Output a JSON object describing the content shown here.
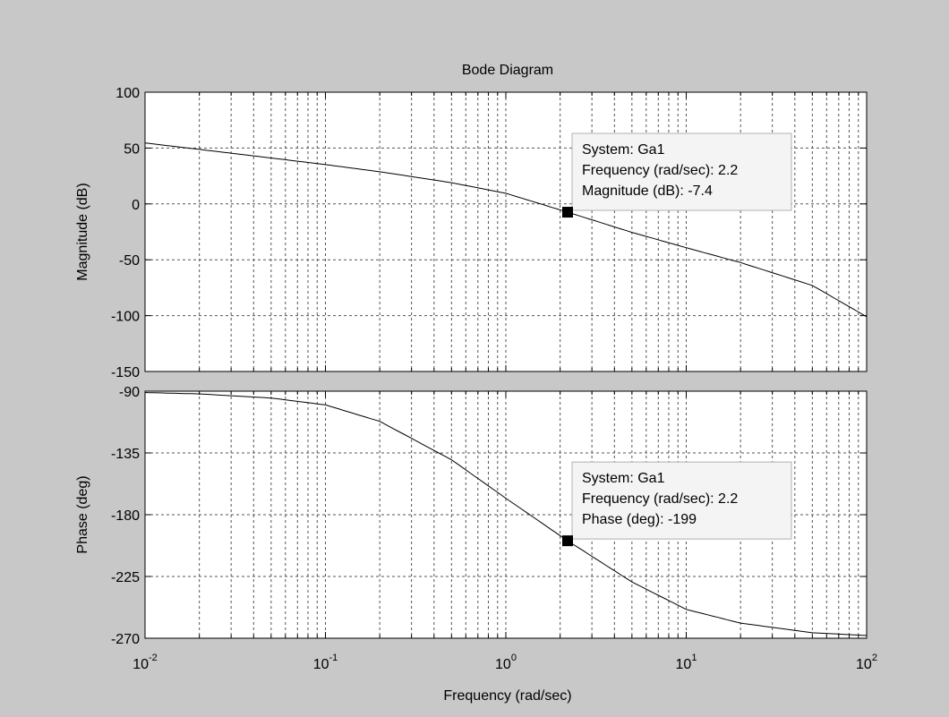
{
  "chart_data": {
    "type": "line",
    "title": "Bode Diagram",
    "xlabel": "Frequency  (rad/sec)",
    "xscale": "log",
    "xlim": [
      0.01,
      100
    ],
    "x_tick_labels": [
      {
        "base": "10",
        "exp": "-2"
      },
      {
        "base": "10",
        "exp": "-1"
      },
      {
        "base": "10",
        "exp": "0"
      },
      {
        "base": "10",
        "exp": "1"
      },
      {
        "base": "10",
        "exp": "2"
      }
    ],
    "grid": true,
    "plots": [
      {
        "id": "magnitude",
        "ylabel": "Magnitude (dB)",
        "ylim": [
          -150,
          100
        ],
        "yticks": [
          100,
          50,
          0,
          -50,
          -100,
          -150
        ],
        "series": [
          {
            "x": [
              0.01,
              0.02,
              0.05,
              0.1,
              0.2,
              0.5,
              1,
              2.2,
              5,
              10,
              20,
              50,
              100
            ],
            "y": [
              54.6,
              48.8,
              41.1,
              35.2,
              28.8,
              19.0,
              9.5,
              -7.4,
              -25.5,
              -39.2,
              -52.5,
              -73.0,
              -101
            ]
          }
        ],
        "datatip": {
          "x": 2.2,
          "y": -7.4,
          "lines": [
            "System: Ga1",
            "Frequency (rad/sec): 2.2",
            "Magnitude (dB): -7.4"
          ]
        }
      },
      {
        "id": "phase",
        "ylabel": "Phase (deg)",
        "ylim": [
          -270,
          -90
        ],
        "yticks": [
          -90,
          -135,
          -180,
          -225,
          -270
        ],
        "series": [
          {
            "x": [
              0.01,
              0.02,
              0.05,
              0.1,
              0.2,
              0.5,
              1,
              2.2,
              5,
              10,
              20,
              50,
              100
            ],
            "y": [
              -91,
              -92,
              -95,
              -100,
              -112,
              -140,
              -168,
              -199,
              -229,
              -249,
              -259,
              -266,
              -268
            ]
          }
        ],
        "datatip": {
          "x": 2.2,
          "y": -199,
          "lines": [
            "System: Ga1",
            "Frequency (rad/sec): 2.2",
            "Phase (deg): -199"
          ]
        }
      }
    ]
  }
}
